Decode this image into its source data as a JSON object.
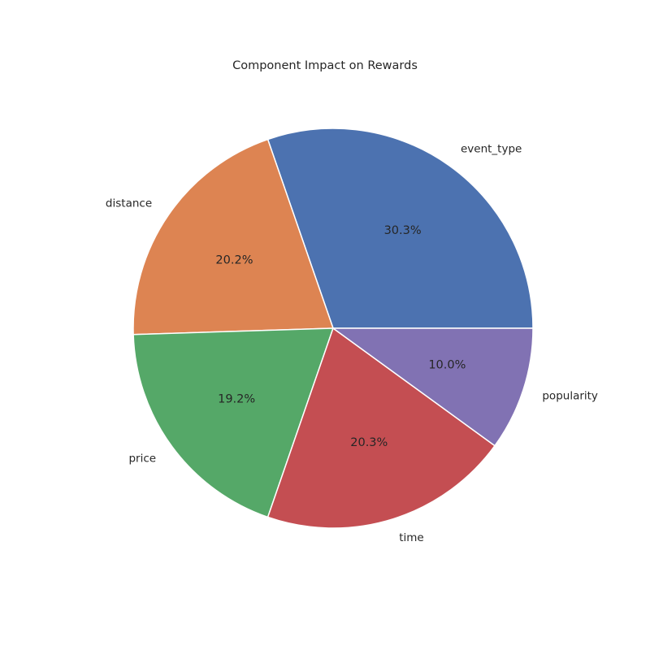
{
  "chart_data": {
    "type": "pie",
    "title": "Component Impact on Rewards",
    "categories": [
      "event_type",
      "distance",
      "price",
      "time",
      "popularity"
    ],
    "values": [
      30.3,
      20.2,
      19.2,
      20.3,
      10.0
    ],
    "percent_labels": [
      "30.3%",
      "20.2%",
      "19.2%",
      "20.3%",
      "10.0%"
    ],
    "colors": [
      "#4c72b0",
      "#dd8452",
      "#55a868",
      "#c44e52",
      "#8172b3"
    ],
    "start_angle_deg": 0,
    "direction": "counterclockwise",
    "legend": "none"
  }
}
